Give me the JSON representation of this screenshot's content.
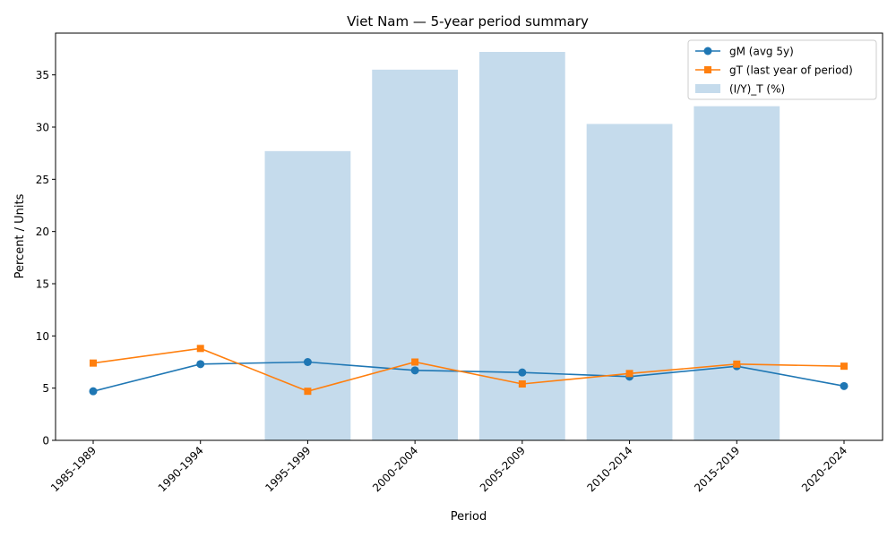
{
  "chart_data": {
    "type": "bar+line",
    "title": "Viet Nam — 5-year period summary",
    "xlabel": "Period",
    "ylabel": "Percent / Units",
    "ylim": [
      0,
      39
    ],
    "yticks": [
      0,
      5,
      10,
      15,
      20,
      25,
      30,
      35
    ],
    "grid": false,
    "legend_position": "top-right",
    "categories": [
      "1985-1989",
      "1990-1994",
      "1995-1999",
      "2000-2004",
      "2005-2009",
      "2010-2014",
      "2015-2019",
      "2020-2024"
    ],
    "bars": {
      "name": "(I/Y)_T (%)",
      "color": "#c5dbec",
      "values": [
        null,
        null,
        27.7,
        35.5,
        37.2,
        30.3,
        32.0,
        null
      ]
    },
    "series": [
      {
        "name": "gM (avg 5y)",
        "color": "#1f77b4",
        "marker": "circle",
        "values": [
          4.7,
          7.3,
          7.5,
          6.7,
          6.5,
          6.1,
          7.1,
          5.2
        ]
      },
      {
        "name": "gT (last year of period)",
        "color": "#ff7f0e",
        "marker": "square",
        "values": [
          7.4,
          8.8,
          4.7,
          7.5,
          5.4,
          6.4,
          7.3,
          7.1
        ]
      }
    ]
  }
}
